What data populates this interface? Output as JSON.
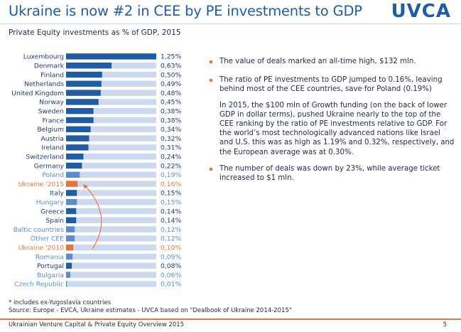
{
  "header": {
    "title": "Ukraine is now #2 in CEE by PE investments to GDP",
    "logo": "UVCA",
    "subtitle": "Private Equity investments as % of GDP, 2015"
  },
  "chart_data": {
    "type": "bar",
    "orientation": "horizontal",
    "title": "Private Equity investments as % of GDP, 2015",
    "xlim": [
      0,
      1.25
    ],
    "categories": [
      "Luxembourg",
      "Denmark",
      "Finland",
      "Netherlands",
      "United Kingdom",
      "Norway",
      "Sweden",
      "France",
      "Belgium",
      "Austria",
      "Ireland",
      "Switzerland",
      "Germany",
      "Poland",
      "Ukraine '2015",
      "Italy",
      "Hungary",
      "Greece",
      "Spain",
      "Baltic countries",
      "Other CEE",
      "Ukraine '2010",
      "Romania",
      "Portugal",
      "Bulgaria",
      "Czech Republic"
    ],
    "values": [
      1.25,
      0.63,
      0.5,
      0.49,
      0.48,
      0.45,
      0.38,
      0.38,
      0.34,
      0.32,
      0.31,
      0.24,
      0.22,
      0.19,
      0.16,
      0.15,
      0.15,
      0.14,
      0.14,
      0.12,
      0.12,
      0.1,
      0.09,
      0.08,
      0.06,
      0.01
    ],
    "value_labels": [
      "1,25%",
      "0,63%",
      "0,50%",
      "0,49%",
      "0,48%",
      "0,45%",
      "0,38%",
      "0,38%",
      "0,34%",
      "0,32%",
      "0,31%",
      "0,24%",
      "0,22%",
      "0,19%",
      "0,16%",
      "0,15%",
      "0,15%",
      "0,14%",
      "0,14%",
      "0,12%",
      "0,12%",
      "0,10%",
      "0,09%",
      "0,08%",
      "0,06%",
      "0,01%"
    ],
    "groups": [
      "we",
      "we",
      "we",
      "we",
      "we",
      "we",
      "we",
      "we",
      "we",
      "we",
      "we",
      "we",
      "we",
      "cee",
      "ua",
      "we",
      "cee",
      "we",
      "we",
      "cee",
      "cee",
      "ua",
      "cee",
      "we",
      "cee",
      "cee"
    ],
    "annotation": "arrow from Ukraine '2010 to Ukraine '2015",
    "colors": {
      "we": "#1f5ca6",
      "cee": "#5b8ccf",
      "ua": "#e8743b",
      "track": "#ccd9ef",
      "we_text": "#1f3a7a",
      "cee_text": "#5b8ccf",
      "ua_text": "#e8743b"
    }
  },
  "bullets": [
    "The value of deals marked an all-time high, $132 mln.",
    "The ratio of PE investments to GDP jumped to 0.16%, leaving behind most of the CEE countries, save for Poland (0.19%)",
    "The number of deals was down by 23%, while average ticket increased to $1 mln."
  ],
  "paragraph": "In 2015, the $100 mln of Growth funding (on the back of lower GDP in dollar terms), pushed Ukraine nearly to the top of the CEE ranking by the ratio of PE investments relative to GDP. For the world’s most technologically advanced nations like Israel and U.S. this was as high as 1.19% and 0.32%, respectively, and the European average was at 0.30%.",
  "footnote": {
    "note": "* includes ex-Yugoslavia countries",
    "source": "Source: Europe - EVCA, Ukraine estimates - UVCA based on \"Dealbook of Ukraine 2014-2015\""
  },
  "footer": {
    "left": "Ukrainian Venture Capital & Private Equity Overview 2015",
    "page": "5"
  }
}
